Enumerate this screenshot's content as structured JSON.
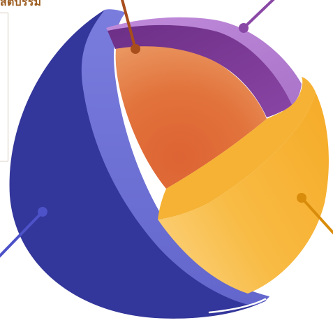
{
  "heading": "สตบรรม",
  "colors": {
    "outer_shell": "#33369a",
    "shell_rim": "#7072d5",
    "upper_layer": "#b47ad1",
    "upper_layer_inner": "#7d3c96",
    "core_section": "#e2703a",
    "lower_section": "#f8b434",
    "leader_orange_brown": "#a84d1c",
    "leader_purple": "#8a48a6",
    "leader_blue": "#4d52c8",
    "leader_gold": "#d98c0b"
  },
  "icons": [
    "callout-dot",
    "callout-dot",
    "callout-dot",
    "callout-dot"
  ]
}
